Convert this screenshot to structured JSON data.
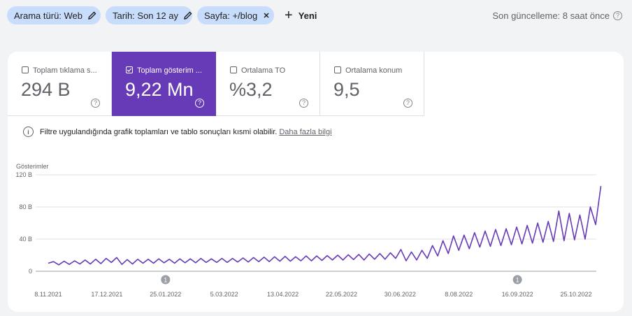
{
  "filters": {
    "chips": [
      {
        "label": "Arama türü: Web",
        "icon": "pencil-icon"
      },
      {
        "label": "Tarih: Son 12 ay",
        "icon": "pencil-icon"
      },
      {
        "label": "Sayfa: +/blog",
        "icon": "close-icon"
      }
    ],
    "new_label": "Yeni",
    "last_update": "Son güncelleme: 8 saat önce"
  },
  "metrics": [
    {
      "label": "Toplam tıklama s...",
      "value": "294 B",
      "selected": false
    },
    {
      "label": "Toplam gösterim ...",
      "value": "9,22 Mn",
      "selected": true
    },
    {
      "label": "Ortalama TO",
      "value": "%3,2",
      "selected": false
    },
    {
      "label": "Ortalama konum",
      "value": "9,5",
      "selected": false
    }
  ],
  "notice": {
    "text": "Filtre uygulandığında grafik toplamları ve tablo sonuçları kısmi olabilir.",
    "link": "Daha fazla bilgi"
  },
  "colors": {
    "accent": "#673ab7",
    "chip_bg": "#c8dcfb"
  },
  "chart_data": {
    "type": "line",
    "ylabel": "Gösterimler",
    "ylim": [
      0,
      120000
    ],
    "y_ticks": [
      {
        "value": 0,
        "label": "0"
      },
      {
        "value": 40000,
        "label": "40 B"
      },
      {
        "value": 80000,
        "label": "80 B"
      },
      {
        "value": 120000,
        "label": "120 B"
      }
    ],
    "x_labels": [
      "8.11.2021",
      "17.12.2021",
      "25.01.2022",
      "5.03.2022",
      "13.04.2022",
      "22.05.2022",
      "30.06.2022",
      "8.08.2022",
      "16.09.2022",
      "25.10.2022"
    ],
    "annotations": [
      {
        "label": "1",
        "x": "25.01.2022"
      },
      {
        "label": "1",
        "x": "16.09.2022"
      }
    ],
    "series": [
      {
        "color": "#673ab7",
        "weekly": [
          {
            "x": "8.11.2021",
            "low": 10000,
            "high": 12000
          },
          {
            "x": "15.11.2021",
            "low": 8000,
            "high": 12500
          },
          {
            "x": "22.11.2021",
            "low": 8500,
            "high": 13000
          },
          {
            "x": "29.11.2021",
            "low": 9000,
            "high": 14000
          },
          {
            "x": "6.12.2021",
            "low": 9000,
            "high": 15000
          },
          {
            "x": "13.12.2021",
            "low": 9500,
            "high": 16000
          },
          {
            "x": "20.12.2021",
            "low": 11000,
            "high": 17000
          },
          {
            "x": "27.12.2021",
            "low": 8500,
            "high": 14500
          },
          {
            "x": "3.01.2022",
            "low": 9000,
            "high": 15000
          },
          {
            "x": "10.01.2022",
            "low": 10000,
            "high": 15000
          },
          {
            "x": "17.01.2022",
            "low": 10000,
            "high": 15500
          },
          {
            "x": "24.01.2022",
            "low": 10500,
            "high": 15000
          },
          {
            "x": "31.01.2022",
            "low": 10000,
            "high": 15500
          },
          {
            "x": "7.02.2022",
            "low": 10500,
            "high": 15500
          },
          {
            "x": "14.02.2022",
            "low": 10500,
            "high": 16000
          },
          {
            "x": "21.02.2022",
            "low": 11000,
            "high": 15500
          },
          {
            "x": "28.02.2022",
            "low": 11000,
            "high": 16000
          },
          {
            "x": "7.03.2022",
            "low": 11000,
            "high": 16000
          },
          {
            "x": "14.03.2022",
            "low": 11500,
            "high": 16500
          },
          {
            "x": "21.03.2022",
            "low": 11500,
            "high": 17000
          },
          {
            "x": "28.03.2022",
            "low": 12000,
            "high": 17500
          },
          {
            "x": "4.04.2022",
            "low": 12000,
            "high": 18000
          },
          {
            "x": "11.04.2022",
            "low": 12500,
            "high": 18500
          },
          {
            "x": "18.04.2022",
            "low": 12500,
            "high": 18000
          },
          {
            "x": "25.04.2022",
            "low": 13000,
            "high": 19000
          },
          {
            "x": "2.05.2022",
            "low": 13000,
            "high": 19000
          },
          {
            "x": "9.05.2022",
            "low": 13500,
            "high": 19500
          },
          {
            "x": "16.05.2022",
            "low": 14000,
            "high": 20000
          },
          {
            "x": "23.05.2022",
            "low": 14000,
            "high": 20500
          },
          {
            "x": "30.05.2022",
            "low": 14500,
            "high": 21000
          },
          {
            "x": "6.06.2022",
            "low": 14000,
            "high": 21500
          },
          {
            "x": "13.06.2022",
            "low": 15000,
            "high": 22000
          },
          {
            "x": "20.06.2022",
            "low": 15000,
            "high": 23000
          },
          {
            "x": "27.06.2022",
            "low": 16000,
            "high": 27000
          },
          {
            "x": "4.07.2022",
            "low": 13000,
            "high": 24000
          },
          {
            "x": "11.07.2022",
            "low": 14000,
            "high": 26000
          },
          {
            "x": "18.07.2022",
            "low": 16000,
            "high": 32000
          },
          {
            "x": "25.07.2022",
            "low": 19000,
            "high": 38000
          },
          {
            "x": "1.08.2022",
            "low": 22000,
            "high": 44000
          },
          {
            "x": "8.08.2022",
            "low": 26000,
            "high": 45000
          },
          {
            "x": "15.08.2022",
            "low": 28000,
            "high": 48000
          },
          {
            "x": "22.08.2022",
            "low": 30000,
            "high": 50000
          },
          {
            "x": "29.08.2022",
            "low": 31000,
            "high": 52000
          },
          {
            "x": "5.09.2022",
            "low": 32000,
            "high": 53000
          },
          {
            "x": "12.09.2022",
            "low": 33000,
            "high": 55000
          },
          {
            "x": "19.09.2022",
            "low": 34000,
            "high": 57000
          },
          {
            "x": "26.09.2022",
            "low": 35000,
            "high": 60000
          },
          {
            "x": "3.10.2022",
            "low": 36000,
            "high": 62000
          },
          {
            "x": "10.10.2022",
            "low": 37000,
            "high": 75000
          },
          {
            "x": "17.10.2022",
            "low": 38000,
            "high": 72000
          },
          {
            "x": "24.10.2022",
            "low": 39000,
            "high": 70000
          },
          {
            "x": "31.10.2022",
            "low": 40000,
            "high": 80000
          },
          {
            "x": "7.11.2022",
            "low": 58000,
            "high": 106000
          }
        ]
      }
    ]
  }
}
